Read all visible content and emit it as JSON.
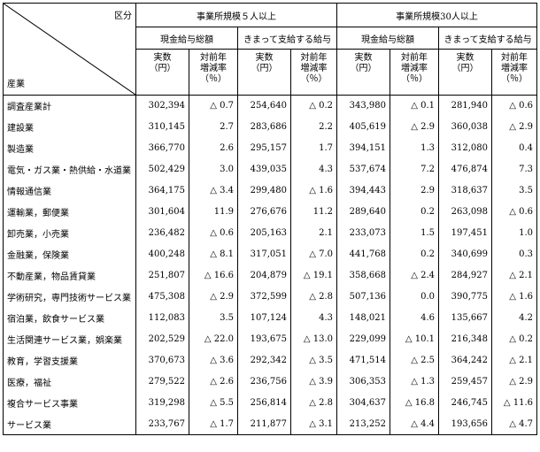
{
  "header": {
    "kubun": "区分",
    "sangyo": "産業",
    "groups": [
      "事業所規模５人以上",
      "事業所規模30人以上"
    ],
    "subgroups": [
      "現金給与総額",
      "きまって支給する給与"
    ],
    "col_actual": [
      "実数",
      "（円）"
    ],
    "col_rate": [
      "対前年",
      "増減率",
      "（％）"
    ]
  },
  "rows": [
    {
      "industry": "調査産業計",
      "cells": [
        [
          "302,394",
          "△ 0.7"
        ],
        [
          "254,640",
          "△ 0.2"
        ],
        [
          "343,980",
          "△ 0.1"
        ],
        [
          "281,940",
          "△ 0.6"
        ]
      ]
    },
    {
      "industry": "建設業",
      "cells": [
        [
          "310,145",
          "2.7"
        ],
        [
          "283,686",
          "2.2"
        ],
        [
          "405,619",
          "△ 2.9"
        ],
        [
          "360,038",
          "△ 2.9"
        ]
      ]
    },
    {
      "industry": "製造業",
      "cells": [
        [
          "366,770",
          "2.6"
        ],
        [
          "295,157",
          "1.7"
        ],
        [
          "394,151",
          "1.3"
        ],
        [
          "312,080",
          "0.4"
        ]
      ]
    },
    {
      "industry": "電気・ガス業・熱供給・水道業",
      "cells": [
        [
          "502,429",
          "3.0"
        ],
        [
          "439,035",
          "4.3"
        ],
        [
          "537,674",
          "7.2"
        ],
        [
          "476,874",
          "7.3"
        ]
      ]
    },
    {
      "industry": "情報通信業",
      "cells": [
        [
          "364,175",
          "△ 3.4"
        ],
        [
          "299,480",
          "△ 1.6"
        ],
        [
          "394,443",
          "2.9"
        ],
        [
          "318,637",
          "3.5"
        ]
      ]
    },
    {
      "industry": "運輸業，郵便業",
      "cells": [
        [
          "301,604",
          "11.9"
        ],
        [
          "276,676",
          "11.2"
        ],
        [
          "289,640",
          "0.2"
        ],
        [
          "263,098",
          "△ 0.6"
        ]
      ]
    },
    {
      "industry": "卸売業，小売業",
      "cells": [
        [
          "236,482",
          "△ 0.6"
        ],
        [
          "205,163",
          "2.1"
        ],
        [
          "233,073",
          "1.5"
        ],
        [
          "197,451",
          "1.0"
        ]
      ]
    },
    {
      "industry": "金融業，保険業",
      "cells": [
        [
          "400,248",
          "△ 8.1"
        ],
        [
          "317,051",
          "△ 7.0"
        ],
        [
          "441,768",
          "0.2"
        ],
        [
          "340,699",
          "0.3"
        ]
      ]
    },
    {
      "industry": "不動産業，物品賃貸業",
      "cells": [
        [
          "251,807",
          "△ 16.6"
        ],
        [
          "204,879",
          "△ 19.1"
        ],
        [
          "358,668",
          "△ 2.4"
        ],
        [
          "284,927",
          "△ 2.1"
        ]
      ]
    },
    {
      "industry": "学術研究，専門技術サービス業",
      "cells": [
        [
          "475,308",
          "△ 2.9"
        ],
        [
          "372,599",
          "△ 2.8"
        ],
        [
          "507,136",
          "0.0"
        ],
        [
          "390,775",
          "△ 1.6"
        ]
      ]
    },
    {
      "industry": "宿泊業，飲食サービス業",
      "cells": [
        [
          "112,083",
          "3.5"
        ],
        [
          "107,124",
          "4.3"
        ],
        [
          "148,021",
          "4.6"
        ],
        [
          "135,667",
          "4.2"
        ]
      ]
    },
    {
      "industry": "生活関連サービス業，娯楽業",
      "cells": [
        [
          "202,529",
          "△ 22.0"
        ],
        [
          "193,675",
          "△ 13.0"
        ],
        [
          "229,099",
          "△ 10.1"
        ],
        [
          "216,348",
          "△ 0.2"
        ]
      ]
    },
    {
      "industry": "教育，学習支援業",
      "cells": [
        [
          "370,673",
          "△ 3.6"
        ],
        [
          "292,342",
          "△ 3.5"
        ],
        [
          "471,514",
          "△ 2.5"
        ],
        [
          "364,242",
          "△ 2.1"
        ]
      ]
    },
    {
      "industry": "医療，福祉",
      "cells": [
        [
          "279,522",
          "△ 2.6"
        ],
        [
          "236,756",
          "△ 3.9"
        ],
        [
          "306,353",
          "△ 1.3"
        ],
        [
          "259,457",
          "△ 2.9"
        ]
      ]
    },
    {
      "industry": "複合サービス事業",
      "cells": [
        [
          "319,298",
          "△ 5.5"
        ],
        [
          "256,814",
          "△ 2.8"
        ],
        [
          "304,637",
          "△ 16.8"
        ],
        [
          "246,745",
          "△ 11.6"
        ]
      ]
    },
    {
      "industry": "サービス業",
      "cells": [
        [
          "233,767",
          "△ 1.7"
        ],
        [
          "211,877",
          "△ 3.1"
        ],
        [
          "213,252",
          "△ 4.4"
        ],
        [
          "193,656",
          "△ 4.7"
        ]
      ]
    }
  ]
}
